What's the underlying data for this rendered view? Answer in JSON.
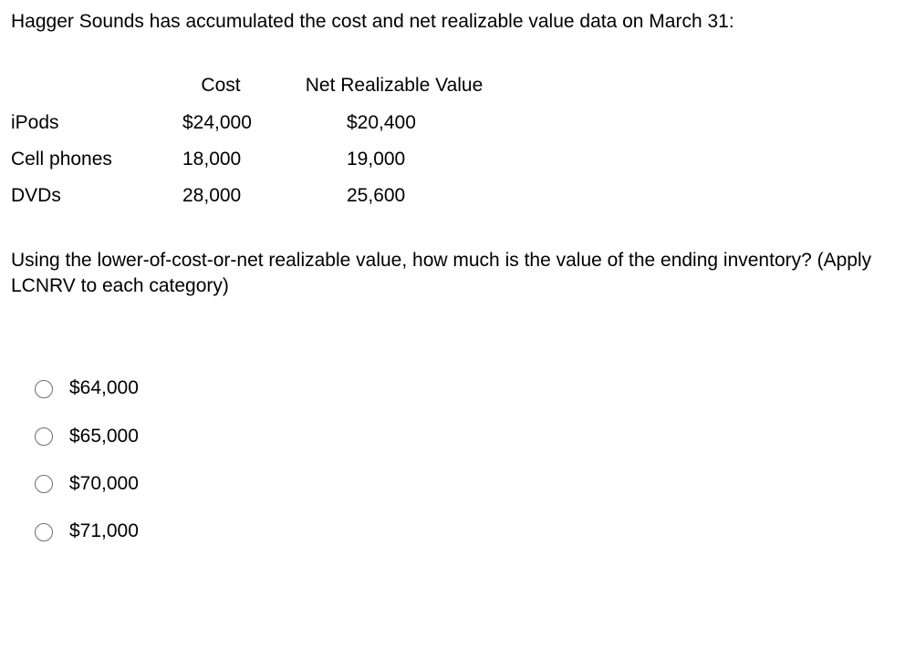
{
  "intro": "Hagger Sounds has accumulated the cost and net realizable value data on March 31:",
  "table": {
    "headers": {
      "cost": "Cost",
      "nrv": "Net Realizable Value"
    },
    "rows": [
      {
        "label": "iPods",
        "cost": "$24,000",
        "nrv": "$20,400"
      },
      {
        "label": "Cell phones",
        "cost": "18,000",
        "nrv": "19,000"
      },
      {
        "label": "DVDs",
        "cost": "28,000",
        "nrv": "25,600"
      }
    ]
  },
  "question": "Using the lower-of-cost-or-net realizable value, how much is the value of the ending inventory? (Apply LCNRV to each category)",
  "options": [
    {
      "label": "$64,000"
    },
    {
      "label": "$65,000"
    },
    {
      "label": "$70,000"
    },
    {
      "label": "$71,000"
    }
  ]
}
